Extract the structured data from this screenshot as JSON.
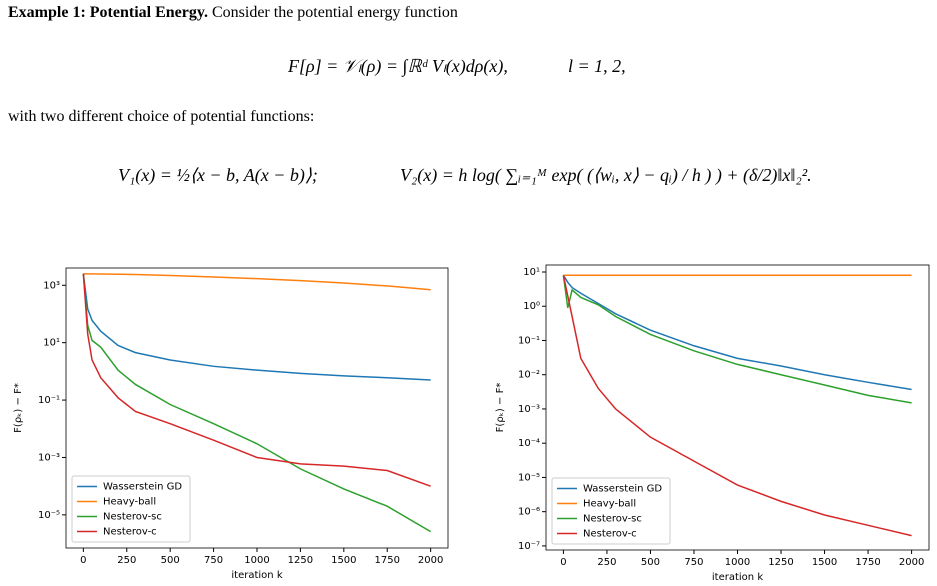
{
  "text": {
    "example_label": "Example 1: Potential Energy.",
    "intro": "Consider the potential energy function",
    "eq1": "F[ρ] = 𝒱ₗ(ρ) = ∫ℝᵈ Vₗ(x)dρ(x),",
    "eq1_cond": "l = 1, 2,",
    "mid": "with two different choice of potential functions:",
    "eq2_v1": "V₁(x) = ½⟨x − b, A(x − b)⟩;",
    "eq2_v2": "V₂(x) = h log( ∑ᵢ₌₁ᴹ exp( (⟨wᵢ, x⟩ − qᵢ) / h ) ) + (δ/2)‖x‖₂²."
  },
  "chart_data": [
    {
      "type": "line",
      "log_y": true,
      "legend": "lower left",
      "xlabel": "iteration k",
      "ylabel": "F(ρₖ) − F*",
      "x": [
        0,
        25,
        50,
        100,
        200,
        300,
        500,
        750,
        1000,
        1250,
        1500,
        1750,
        2000
      ],
      "xlim": [
        -100,
        2100
      ],
      "xticks": [
        0,
        250,
        500,
        750,
        1000,
        1250,
        1500,
        1750,
        2000
      ],
      "ylim": [
        7e-07,
        4000
      ],
      "yticks": [
        {
          "value": 1000,
          "label": "10³"
        },
        {
          "value": 10,
          "label": "10¹"
        },
        {
          "value": 0.1,
          "label": "10⁻¹"
        },
        {
          "value": 0.001,
          "label": "10⁻³"
        },
        {
          "value": 1e-05,
          "label": "10⁻⁵"
        }
      ],
      "series": [
        {
          "name": "Wasserstein GD",
          "color": "#1f77b4",
          "values": [
            2500,
            150,
            60,
            25,
            8,
            4.5,
            2.5,
            1.5,
            1.1,
            0.85,
            0.7,
            0.6,
            0.5
          ]
        },
        {
          "name": "Heavy-ball",
          "color": "#ff7f0e",
          "values": [
            2500,
            2500,
            2490,
            2470,
            2420,
            2380,
            2200,
            1950,
            1700,
            1450,
            1200,
            950,
            700
          ]
        },
        {
          "name": "Nesterov-sc",
          "color": "#2ca02c",
          "values": [
            2500,
            40,
            12,
            7,
            1.1,
            0.35,
            0.07,
            0.015,
            0.003,
            0.0004,
            8e-05,
            2e-05,
            2.6e-06
          ]
        },
        {
          "name": "Nesterov-c",
          "color": "#d62728",
          "values": [
            2500,
            20,
            2.5,
            0.6,
            0.12,
            0.04,
            0.015,
            0.004,
            0.001,
            0.0006,
            0.0005,
            0.00035,
            0.0001
          ]
        }
      ]
    },
    {
      "type": "line",
      "log_y": true,
      "legend": "lower left",
      "xlabel": "iteration k",
      "ylabel": "F(ρₖ) − F*",
      "x": [
        0,
        25,
        50,
        100,
        200,
        300,
        500,
        750,
        1000,
        1250,
        1500,
        1750,
        2000
      ],
      "xlim": [
        -100,
        2100
      ],
      "xticks": [
        0,
        250,
        500,
        750,
        1000,
        1250,
        1500,
        1750,
        2000
      ],
      "ylim": [
        7.6e-08,
        16
      ],
      "yticks": [
        {
          "value": 10,
          "label": "10¹"
        },
        {
          "value": 1,
          "label": "10⁰"
        },
        {
          "value": 0.1,
          "label": "10⁻¹"
        },
        {
          "value": 0.01,
          "label": "10⁻²"
        },
        {
          "value": 0.001,
          "label": "10⁻³"
        },
        {
          "value": 0.0001,
          "label": "10⁻⁴"
        },
        {
          "value": 1e-05,
          "label": "10⁻⁵"
        },
        {
          "value": 1e-06,
          "label": "10⁻⁶"
        },
        {
          "value": 1e-07,
          "label": "10⁻⁷"
        }
      ],
      "series": [
        {
          "name": "Wasserstein GD",
          "color": "#1f77b4",
          "values": [
            8,
            5,
            3.5,
            2.4,
            1.2,
            0.6,
            0.2,
            0.07,
            0.03,
            0.018,
            0.01,
            0.006,
            0.0037
          ]
        },
        {
          "name": "Heavy-ball",
          "color": "#ff7f0e",
          "values": [
            8,
            8,
            8,
            8,
            8,
            8,
            8,
            8,
            8,
            8,
            8,
            8,
            8
          ]
        },
        {
          "name": "Nesterov-sc",
          "color": "#2ca02c",
          "values": [
            8,
            0.9,
            3,
            1.8,
            1.1,
            0.5,
            0.15,
            0.05,
            0.02,
            0.01,
            0.005,
            0.0025,
            0.0015
          ]
        },
        {
          "name": "Nesterov-c",
          "color": "#d62728",
          "values": [
            8,
            2,
            0.5,
            0.03,
            0.004,
            0.001,
            0.00015,
            3e-05,
            6e-06,
            2e-06,
            8e-07,
            4e-07,
            2e-07
          ]
        }
      ]
    }
  ]
}
